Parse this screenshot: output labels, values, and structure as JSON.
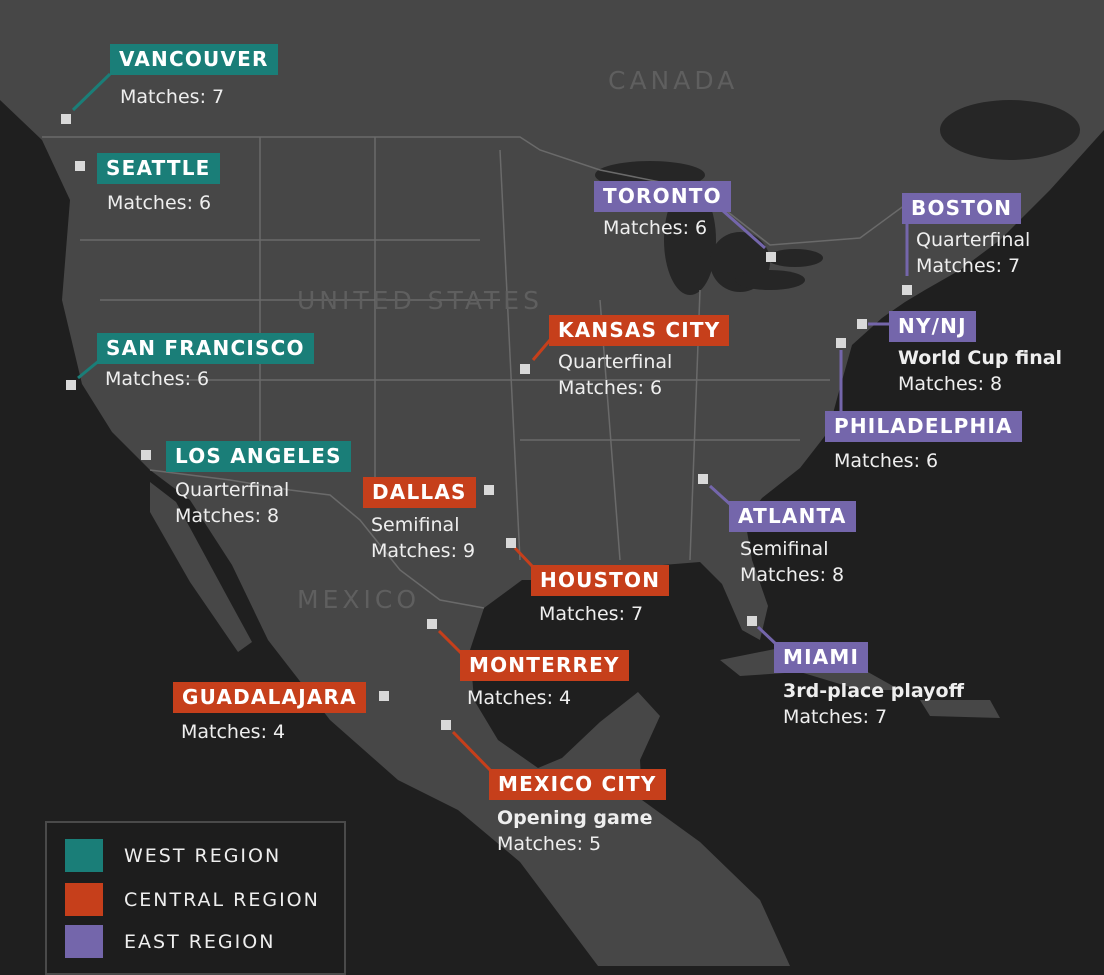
{
  "countries": {
    "canada": "CANADA",
    "usa": "UNITED STATES",
    "mexico": "MEXICO"
  },
  "colors": {
    "west": "#1a7e78",
    "central": "#c63f1b",
    "east": "#7466ab",
    "land": "#474747",
    "water": "#1f1f1f"
  },
  "cities": [
    {
      "name": "VANCOUVER",
      "region": "west",
      "note": "",
      "matches": "Matches: 7"
    },
    {
      "name": "SEATTLE",
      "region": "west",
      "note": "",
      "matches": "Matches: 6"
    },
    {
      "name": "SAN FRANCISCO",
      "region": "west",
      "note": "",
      "matches": "Matches: 6"
    },
    {
      "name": "LOS ANGELES",
      "region": "west",
      "note": "Quarterfinal",
      "matches": "Matches: 8"
    },
    {
      "name": "DALLAS",
      "region": "central",
      "note": "Semifinal",
      "matches": "Matches: 9"
    },
    {
      "name": "HOUSTON",
      "region": "central",
      "note": "",
      "matches": "Matches: 7"
    },
    {
      "name": "KANSAS CITY",
      "region": "central",
      "note": "Quarterfinal",
      "matches": "Matches: 6"
    },
    {
      "name": "MONTERREY",
      "region": "central",
      "note": "",
      "matches": "Matches: 4"
    },
    {
      "name": "GUADALAJARA",
      "region": "central",
      "note": "",
      "matches": "Matches: 4"
    },
    {
      "name": "MEXICO CITY",
      "region": "central",
      "note": "Opening game",
      "matches": "Matches: 5"
    },
    {
      "name": "TORONTO",
      "region": "east",
      "note": "",
      "matches": "Matches: 6"
    },
    {
      "name": "BOSTON",
      "region": "east",
      "note": "Quarterfinal",
      "matches": "Matches: 7"
    },
    {
      "name": "NY/NJ",
      "region": "east",
      "note": "World Cup final",
      "matches": "Matches: 8"
    },
    {
      "name": "PHILADELPHIA",
      "region": "east",
      "note": "",
      "matches": "Matches: 6"
    },
    {
      "name": "ATLANTA",
      "region": "east",
      "note": "Semifinal",
      "matches": "Matches: 8"
    },
    {
      "name": "MIAMI",
      "region": "east",
      "note": "3rd-place playoff",
      "matches": "Matches: 7"
    }
  ],
  "legend": [
    {
      "label": "WEST REGION",
      "region": "west"
    },
    {
      "label": "CENTRAL REGION",
      "region": "central"
    },
    {
      "label": "EAST REGION",
      "region": "east"
    }
  ]
}
